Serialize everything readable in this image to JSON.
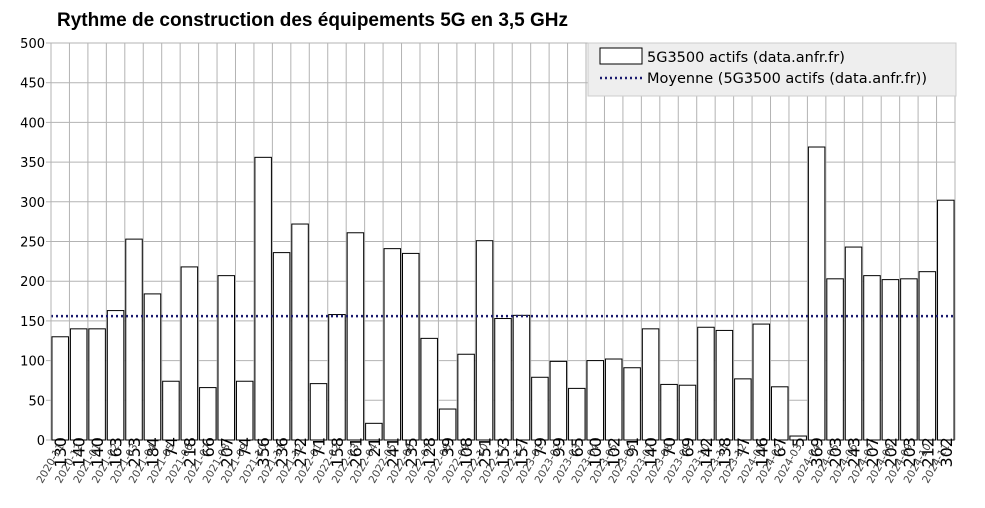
{
  "chart_data": {
    "type": "bar",
    "title": "Rythme de construction des équipements 5G en 3,5 GHz",
    "xlabel": "",
    "ylabel": "",
    "ylim": [
      0,
      500
    ],
    "yticks": [
      0,
      50,
      100,
      150,
      200,
      250,
      300,
      350,
      400,
      450,
      500
    ],
    "grid": true,
    "legend_position": "top-right",
    "categories": [
      "2020-11",
      "2020-12",
      "2021-01",
      "2021-02",
      "2021-03",
      "2021-04",
      "2021-05",
      "2021-06",
      "2021-07",
      "2021-08",
      "2021-09",
      "2021-10",
      "2021-11",
      "2021-12",
      "2022-01",
      "2022-02",
      "2022-03",
      "2022-04",
      "2022-05",
      "2022-06",
      "2022-07",
      "2022-08",
      "2022-09",
      "2022-10",
      "2022-11",
      "2022-12",
      "2023-01",
      "2023-02",
      "2023-03",
      "2023-04",
      "2023-05",
      "2023-06",
      "2023-07",
      "2023-08",
      "2023-09",
      "2023-10",
      "2023-11",
      "2023-12",
      "2024-01",
      "2024-02",
      "2024-03",
      "2024-04",
      "2024-05",
      "2024-06",
      "2024-07",
      "2024-08",
      "2024-09",
      "2024-10",
      "2024-11"
    ],
    "series": [
      {
        "name": "5G3500 actifs (data.anfr.fr)",
        "values": [
          130,
          140,
          140,
          163,
          253,
          184,
          74,
          218,
          66,
          207,
          74,
          356,
          236,
          272,
          71,
          158,
          261,
          21,
          241,
          235,
          128,
          39,
          108,
          251,
          153,
          157,
          79,
          99,
          65,
          100,
          102,
          91,
          140,
          70,
          69,
          142,
          138,
          77,
          146,
          67,
          5,
          369,
          203,
          243,
          207,
          202,
          203,
          212,
          302
        ],
        "fill": "#ffffff",
        "stroke": "#000000"
      },
      {
        "name": "Moyenne (5G3500 actifs (data.anfr.fr))",
        "value": 156,
        "color": "#1a1a6e",
        "style": "dotted"
      }
    ]
  }
}
